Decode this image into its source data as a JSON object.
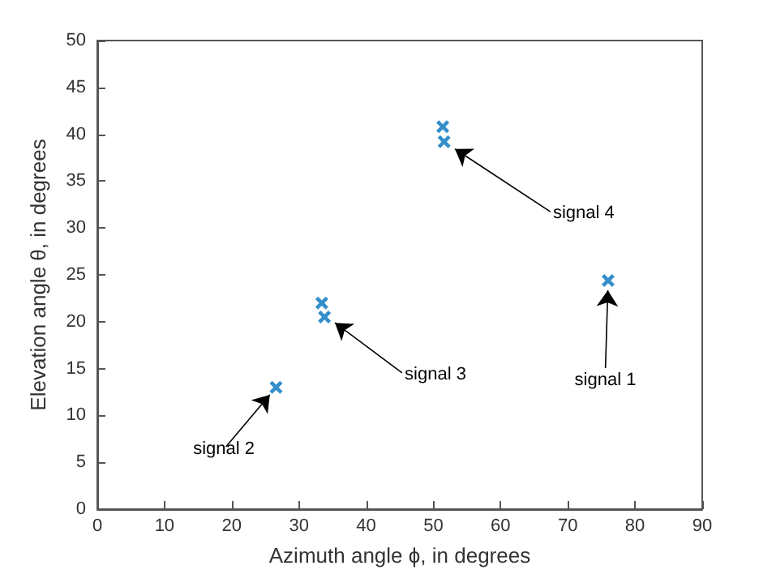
{
  "chart_data": {
    "type": "scatter",
    "xlabel": "Azimuth angle ϕ, in degrees",
    "ylabel": "Elevation angle θ, in degrees",
    "series": [
      {
        "color": "#0072bd",
        "x": [
          76,
          26.6,
          33.4,
          33.8,
          51.4,
          51.6
        ],
        "values": [
          24.4,
          13,
          22,
          20.5,
          40.8,
          39.2
        ]
      }
    ],
    "marker": "cross",
    "grid": false,
    "xlim": [
      0,
      90
    ],
    "xticks": [
      0,
      10,
      20,
      30,
      40,
      50,
      60,
      70,
      80,
      90
    ],
    "ylim": [
      0,
      50
    ],
    "yticks": [
      0,
      5,
      10,
      15,
      20,
      25,
      30,
      35,
      40,
      45,
      50
    ],
    "annotations": [
      {
        "text": "signal 1",
        "x": 76,
        "y": 24.4
      },
      {
        "text": "signal 2",
        "x": 26.6,
        "y": 13
      },
      {
        "text": "signal 3",
        "x": 34.2,
        "y": 20.5
      },
      {
        "text": "signal 4",
        "x": 52,
        "y": 39
      }
    ]
  }
}
